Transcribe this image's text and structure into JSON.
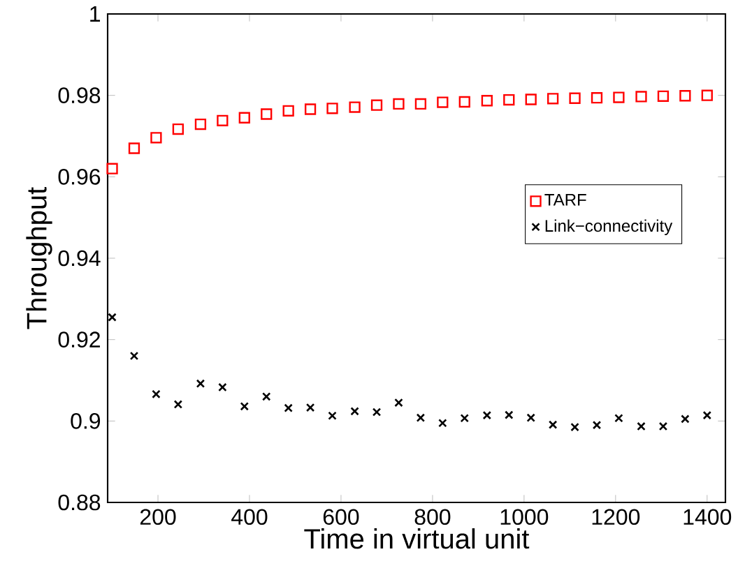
{
  "chart_data": {
    "type": "scatter",
    "xlabel": "Time in virtual unit",
    "ylabel": "Throughput",
    "x": [
      100,
      148,
      196,
      244,
      293,
      341,
      389,
      437,
      485,
      533,
      581,
      630,
      678,
      726,
      774,
      822,
      870,
      919,
      967,
      1015,
      1063,
      1111,
      1159,
      1207,
      1256,
      1304,
      1352,
      1400
    ],
    "series": [
      {
        "name": "TARF",
        "color": "#ff0000",
        "marker": "square",
        "values": [
          0.962,
          0.967,
          0.9696,
          0.9717,
          0.9729,
          0.9738,
          0.9745,
          0.9754,
          0.9762,
          0.9766,
          0.9768,
          0.9771,
          0.9776,
          0.9779,
          0.9779,
          0.9783,
          0.9784,
          0.9787,
          0.9789,
          0.979,
          0.9792,
          0.9793,
          0.9794,
          0.9795,
          0.9797,
          0.9798,
          0.9799,
          0.98
        ]
      },
      {
        "name": "Link−connectivity",
        "color": "#000000",
        "marker": "cross",
        "values": [
          0.9255,
          0.916,
          0.9066,
          0.9041,
          0.9092,
          0.9083,
          0.9036,
          0.906,
          0.9032,
          0.9033,
          0.9013,
          0.9024,
          0.9022,
          0.9045,
          0.9008,
          0.8995,
          0.9007,
          0.9014,
          0.9015,
          0.9008,
          0.8991,
          0.8985,
          0.899,
          0.9007,
          0.8987,
          0.8987,
          0.9005,
          0.9014
        ]
      }
    ],
    "xlim": [
      90,
      1440
    ],
    "ylim": [
      0.88,
      1
    ],
    "xticks": [
      200,
      400,
      600,
      800,
      1000,
      1200,
      1400
    ],
    "yticks": [
      0.88,
      0.9,
      0.92,
      0.94,
      0.96,
      0.98,
      1
    ],
    "grid": false,
    "legend": "right"
  }
}
